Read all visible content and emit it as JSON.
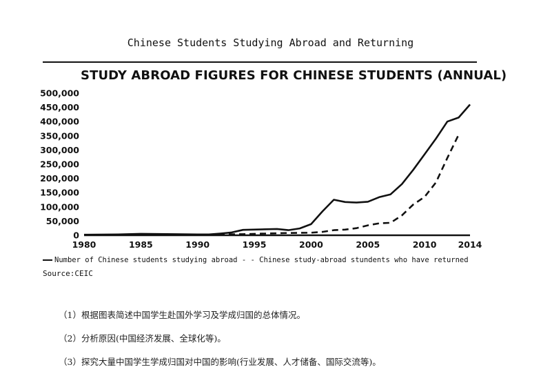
{
  "page_title": "Chinese Students Studying Abroad and Returning",
  "legend": {
    "series1": "Number of Chinese students studying abroad",
    "separator": "- -",
    "series2": "Chinese study-abroad stundents who have returned"
  },
  "source": "Source:CEIC",
  "questions": [
    "（1）根据图表简述中国学生赴国外学习及学成归国的总体情况。",
    "（2）分析原因(中国经济发展、全球化等)。",
    "（3）探究大量中国学生学成归国对中国的影响(行业发展、人才储备、国际交流等)。"
  ],
  "chart_data": {
    "type": "line",
    "title": "STUDY ABROAD FIGURES FOR CHINESE STUDENTS (ANNUAL)",
    "xlabel": "",
    "ylabel": "",
    "xlim": [
      1980,
      2014
    ],
    "ylim": [
      0,
      500000
    ],
    "x_ticks": [
      "1980",
      "1985",
      "1990",
      "1995",
      "2000",
      "2005",
      "2010",
      "2014"
    ],
    "y_ticks": [
      "0",
      "50,000",
      "100,000",
      "150,000",
      "200,000",
      "250,000",
      "300,000",
      "350,000",
      "400,000",
      "450,000",
      "500,000"
    ],
    "grid": false,
    "legend_position": "bottom",
    "series": [
      {
        "name": "Number of Chinese students studying abroad",
        "style": "solid",
        "x": [
          1980,
          1983,
          1985,
          1988,
          1990,
          1991,
          1992,
          1993,
          1994,
          1996,
          1997,
          1998,
          1999,
          2000,
          2001,
          2002,
          2003,
          2004,
          2005,
          2006,
          2007,
          2008,
          2009,
          2010,
          2011,
          2012,
          2013,
          2014
        ],
        "values": [
          2000,
          3000,
          5000,
          4000,
          3000,
          3000,
          6000,
          10000,
          19000,
          21000,
          22000,
          18000,
          24000,
          39000,
          84000,
          125000,
          117000,
          115000,
          118000,
          134000,
          144000,
          180000,
          230000,
          285000,
          340000,
          400000,
          414000,
          460000
        ]
      },
      {
        "name": "Chinese study-abroad stundents who have returned",
        "style": "dashed",
        "x": [
          1980,
          1985,
          1990,
          1992,
          1994,
          1996,
          1998,
          2000,
          2001,
          2002,
          2003,
          2004,
          2005,
          2006,
          2007,
          2008,
          2009,
          2010,
          2011,
          2012,
          2013
        ],
        "values": [
          1000,
          2000,
          2000,
          3000,
          4000,
          6000,
          8000,
          9000,
          12000,
          18000,
          20000,
          25000,
          35000,
          42000,
          44000,
          70000,
          108000,
          135000,
          186000,
          272000,
          354000
        ]
      }
    ]
  }
}
